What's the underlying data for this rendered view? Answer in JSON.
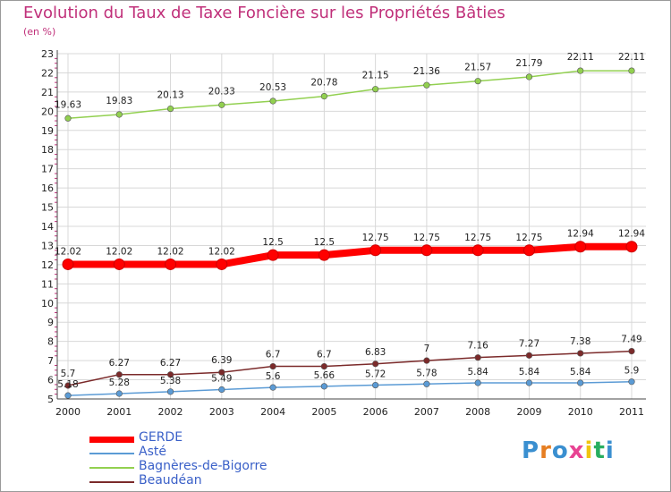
{
  "title": "Evolution du Taux de Taxe Foncière sur les Propriétés Bâties",
  "unit": "(en %)",
  "logo": "Proxiti",
  "colors": {
    "title": "#c0307a",
    "legend_text": "#3a60c8",
    "grid": "#d8d8d8"
  },
  "chart_data": {
    "type": "line",
    "title": "Evolution du Taux de Taxe Foncière sur les Propriétés Bâties",
    "ylabel": "(en %)",
    "xlabel": "",
    "ylim": [
      5,
      23
    ],
    "yticks": [
      "5",
      "6",
      "7",
      "8",
      "9",
      "10",
      "11",
      "12",
      "13",
      "14",
      "15",
      "16",
      "17",
      "18",
      "19",
      "20",
      "21",
      "22",
      "23"
    ],
    "x": [
      "2000",
      "2001",
      "2002",
      "2003",
      "2004",
      "2005",
      "2006",
      "2007",
      "2008",
      "2009",
      "2010",
      "2011"
    ],
    "grid": true,
    "legend_position": "bottom-left",
    "series": [
      {
        "name": "GERDE",
        "color": "#ff0000",
        "values": [
          12.02,
          12.02,
          12.02,
          12.02,
          12.5,
          12.5,
          12.75,
          12.75,
          12.75,
          12.75,
          12.94,
          12.94
        ],
        "labels": [
          "12.02",
          "12.02",
          "12.02",
          "12.02",
          "12.5",
          "12.5",
          "12.75",
          "12.75",
          "12.75",
          "12.75",
          "12.94",
          "12.94"
        ]
      },
      {
        "name": "Asté",
        "color": "#5b9bd5",
        "values": [
          5.18,
          5.28,
          5.38,
          5.49,
          5.6,
          5.66,
          5.72,
          5.78,
          5.84,
          5.84,
          5.84,
          5.9
        ],
        "labels": [
          "5.18",
          "5.28",
          "5.38",
          "5.49",
          "5.6",
          "5.66",
          "5.72",
          "5.78",
          "5.84",
          "5.84",
          "5.84",
          "5.9"
        ]
      },
      {
        "name": "Bagnères-de-Bigorre",
        "color": "#92d050",
        "values": [
          19.63,
          19.83,
          20.13,
          20.33,
          20.53,
          20.78,
          21.15,
          21.36,
          21.57,
          21.79,
          22.11,
          22.11
        ],
        "labels": [
          "19.63",
          "19.83",
          "20.13",
          "20.33",
          "20.53",
          "20.78",
          "21.15",
          "21.36",
          "21.57",
          "21.79",
          "22.11",
          "22.11"
        ]
      },
      {
        "name": "Beaudéan",
        "color": "#7b2a2a",
        "values": [
          5.7,
          6.27,
          6.27,
          6.39,
          6.7,
          6.7,
          6.83,
          7.0,
          7.16,
          7.27,
          7.38,
          7.49
        ],
        "labels": [
          "5.7",
          "6.27",
          "6.27",
          "6.39",
          "6.7",
          "6.7",
          "6.83",
          "7",
          "7.16",
          "7.27",
          "7.38",
          "7.49"
        ]
      }
    ]
  }
}
